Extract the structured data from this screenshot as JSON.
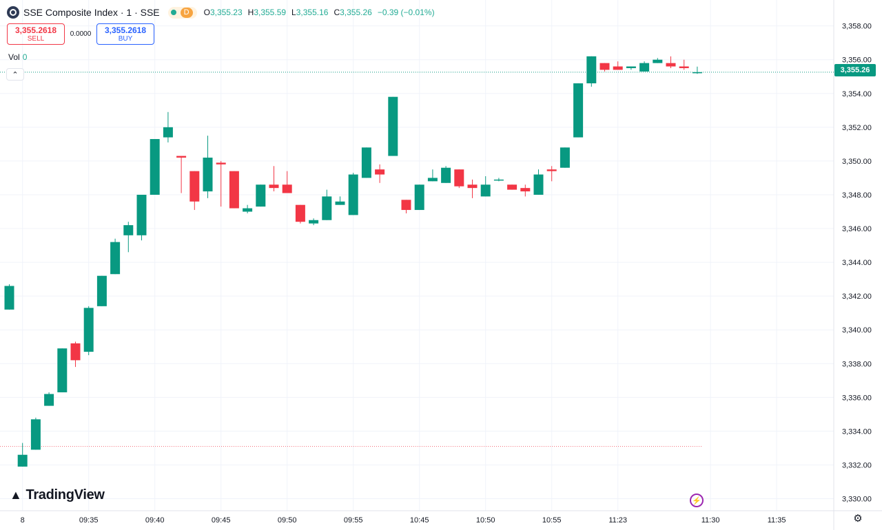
{
  "header": {
    "symbol_title": "SSE Composite Index · 1 · SSE",
    "market_status_icon": "market-open-dot",
    "delay_badge": "D",
    "ohlc": {
      "open_label": "O",
      "open": "3,355.23",
      "high_label": "H",
      "high": "3,355.59",
      "low_label": "L",
      "low": "3,355.16",
      "close_label": "C",
      "close": "3,355.26",
      "change": "−0.39 (−0.01%)"
    }
  },
  "trade": {
    "sell_price": "3,355.2618",
    "sell_label": "SELL",
    "spread": "0.0000",
    "buy_price": "3,355.2618",
    "buy_label": "BUY"
  },
  "volume": {
    "label": "Vol",
    "value": "0"
  },
  "last_price_label": "3,355.26",
  "branding": {
    "logo_text": "TradingView",
    "logo_icon": "tradingview-logo-icon"
  },
  "icons": {
    "collapse": "chevron-up-icon",
    "alert": "lightning-icon",
    "settings": "gear-icon"
  },
  "colors": {
    "up": "#089981",
    "down": "#f23645",
    "grid": "#f0f3fa",
    "axis_text": "#131722",
    "accent": "#2962ff"
  },
  "chart_data": {
    "type": "candlestick",
    "title": "SSE Composite Index · 1 · SSE",
    "ylim": [
      3329,
      3358.8
    ],
    "y_ticks": [
      "3,330.00",
      "3,332.00",
      "3,334.00",
      "3,336.00",
      "3,338.00",
      "3,340.00",
      "3,342.00",
      "3,344.00",
      "3,346.00",
      "3,348.00",
      "3,350.00",
      "3,352.00",
      "3,354.00",
      "3,356.00",
      "3,358.00"
    ],
    "y_tick_values": [
      3330,
      3332,
      3334,
      3336,
      3338,
      3340,
      3342,
      3344,
      3346,
      3348,
      3350,
      3352,
      3354,
      3356,
      3358
    ],
    "x_ticks": [
      {
        "index": 1,
        "label": "8"
      },
      {
        "index": 6,
        "label": "09:35"
      },
      {
        "index": 11,
        "label": "09:40"
      },
      {
        "index": 16,
        "label": "09:45"
      },
      {
        "index": 21,
        "label": "09:50"
      },
      {
        "index": 26,
        "label": "09:55"
      },
      {
        "index": 31,
        "label": "10:45"
      },
      {
        "index": 36,
        "label": "10:50"
      },
      {
        "index": 41,
        "label": "10:55"
      },
      {
        "index": 46,
        "label": "11:23"
      },
      {
        "index": 53,
        "label": "11:30"
      },
      {
        "index": 58,
        "label": "11:35"
      }
    ],
    "last_price": 3355.26,
    "reference_price": 3333.1,
    "candles": [
      {
        "o": 3341.2,
        "h": 3342.7,
        "l": 3341.2,
        "c": 3342.6
      },
      {
        "o": 3331.9,
        "h": 3333.3,
        "l": 3331.9,
        "c": 3332.6
      },
      {
        "o": 3332.9,
        "h": 3334.8,
        "l": 3332.9,
        "c": 3334.7
      },
      {
        "o": 3335.5,
        "h": 3336.3,
        "l": 3335.5,
        "c": 3336.2
      },
      {
        "o": 3336.3,
        "h": 3338.9,
        "l": 3336.3,
        "c": 3338.9
      },
      {
        "o": 3339.2,
        "h": 3339.3,
        "l": 3337.8,
        "c": 3338.2
      },
      {
        "o": 3338.7,
        "h": 3341.4,
        "l": 3338.5,
        "c": 3341.3
      },
      {
        "o": 3341.4,
        "h": 3343.2,
        "l": 3341.4,
        "c": 3343.2
      },
      {
        "o": 3343.3,
        "h": 3345.4,
        "l": 3343.3,
        "c": 3345.2
      },
      {
        "o": 3345.6,
        "h": 3346.4,
        "l": 3344.6,
        "c": 3346.2
      },
      {
        "o": 3345.6,
        "h": 3348.0,
        "l": 3345.3,
        "c": 3348.0
      },
      {
        "o": 3348.0,
        "h": 3351.3,
        "l": 3348.0,
        "c": 3351.3
      },
      {
        "o": 3351.4,
        "h": 3352.9,
        "l": 3351.1,
        "c": 3352.0
      },
      {
        "o": 3350.3,
        "h": 3350.3,
        "l": 3348.1,
        "c": 3350.2
      },
      {
        "o": 3349.4,
        "h": 3349.4,
        "l": 3347.1,
        "c": 3347.6
      },
      {
        "o": 3348.2,
        "h": 3351.5,
        "l": 3347.8,
        "c": 3350.2
      },
      {
        "o": 3349.9,
        "h": 3350.0,
        "l": 3347.3,
        "c": 3349.8
      },
      {
        "o": 3349.4,
        "h": 3349.4,
        "l": 3347.2,
        "c": 3347.2
      },
      {
        "o": 3347.0,
        "h": 3347.4,
        "l": 3346.9,
        "c": 3347.2
      },
      {
        "o": 3347.3,
        "h": 3348.6,
        "l": 3347.3,
        "c": 3348.6
      },
      {
        "o": 3348.6,
        "h": 3349.7,
        "l": 3348.2,
        "c": 3348.4
      },
      {
        "o": 3348.6,
        "h": 3349.4,
        "l": 3348.1,
        "c": 3348.1
      },
      {
        "o": 3347.4,
        "h": 3347.4,
        "l": 3346.3,
        "c": 3346.4
      },
      {
        "o": 3346.3,
        "h": 3346.6,
        "l": 3346.2,
        "c": 3346.5
      },
      {
        "o": 3346.5,
        "h": 3348.3,
        "l": 3346.5,
        "c": 3347.9
      },
      {
        "o": 3347.4,
        "h": 3347.9,
        "l": 3347.4,
        "c": 3347.6
      },
      {
        "o": 3346.8,
        "h": 3349.3,
        "l": 3346.8,
        "c": 3349.2
      },
      {
        "o": 3349.0,
        "h": 3350.8,
        "l": 3349.0,
        "c": 3350.8
      },
      {
        "o": 3349.5,
        "h": 3349.8,
        "l": 3348.7,
        "c": 3349.2
      },
      {
        "o": 3350.3,
        "h": 3353.8,
        "l": 3350.3,
        "c": 3353.8
      },
      {
        "o": 3347.7,
        "h": 3347.7,
        "l": 3346.9,
        "c": 3347.1
      },
      {
        "o": 3347.1,
        "h": 3348.6,
        "l": 3347.1,
        "c": 3348.6
      },
      {
        "o": 3348.8,
        "h": 3349.5,
        "l": 3348.8,
        "c": 3349.0
      },
      {
        "o": 3348.7,
        "h": 3349.7,
        "l": 3348.7,
        "c": 3349.6
      },
      {
        "o": 3349.5,
        "h": 3349.5,
        "l": 3348.4,
        "c": 3348.5
      },
      {
        "o": 3348.6,
        "h": 3348.9,
        "l": 3347.8,
        "c": 3348.4
      },
      {
        "o": 3347.9,
        "h": 3349.1,
        "l": 3347.9,
        "c": 3348.6
      },
      {
        "o": 3348.9,
        "h": 3349.0,
        "l": 3348.8,
        "c": 3348.9
      },
      {
        "o": 3348.6,
        "h": 3348.6,
        "l": 3348.3,
        "c": 3348.3
      },
      {
        "o": 3348.4,
        "h": 3348.6,
        "l": 3347.9,
        "c": 3348.2
      },
      {
        "o": 3348.0,
        "h": 3349.5,
        "l": 3348.0,
        "c": 3349.2
      },
      {
        "o": 3349.5,
        "h": 3349.7,
        "l": 3348.8,
        "c": 3349.4
      },
      {
        "o": 3349.6,
        "h": 3350.8,
        "l": 3349.6,
        "c": 3350.8
      },
      {
        "o": 3351.4,
        "h": 3354.6,
        "l": 3351.4,
        "c": 3354.6
      },
      {
        "o": 3354.6,
        "h": 3356.2,
        "l": 3354.4,
        "c": 3356.2
      },
      {
        "o": 3355.8,
        "h": 3355.8,
        "l": 3355.3,
        "c": 3355.4
      },
      {
        "o": 3355.6,
        "h": 3355.9,
        "l": 3355.4,
        "c": 3355.4
      },
      {
        "o": 3355.5,
        "h": 3355.6,
        "l": 3355.4,
        "c": 3355.6
      },
      {
        "o": 3355.3,
        "h": 3355.9,
        "l": 3355.3,
        "c": 3355.8
      },
      {
        "o": 3355.8,
        "h": 3356.1,
        "l": 3355.8,
        "c": 3356.0
      },
      {
        "o": 3355.8,
        "h": 3356.2,
        "l": 3355.5,
        "c": 3355.6
      },
      {
        "o": 3355.6,
        "h": 3356.0,
        "l": 3355.4,
        "c": 3355.5
      },
      {
        "o": 3355.23,
        "h": 3355.59,
        "l": 3355.16,
        "c": 3355.26
      }
    ]
  }
}
